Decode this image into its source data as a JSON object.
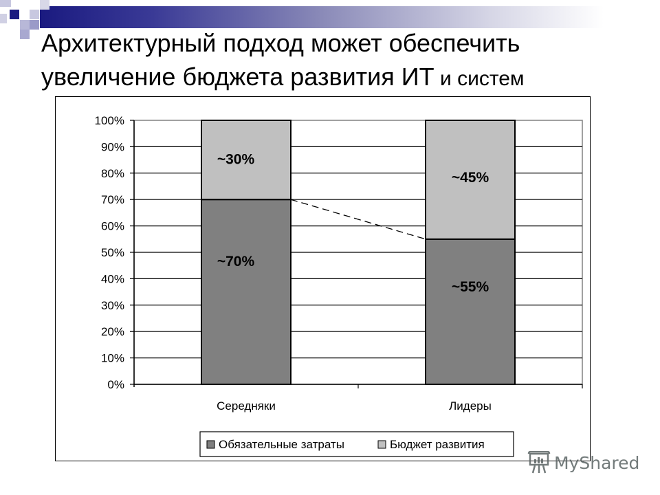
{
  "slide": {
    "title_line1": "Архитектурный подход может обеспечить",
    "title_line2_main": "увеличение бюджета развития ИТ",
    "title_line2_small": " и систем",
    "accent_color": "#1a1a80"
  },
  "watermark": {
    "text": "MyShared",
    "icon": "presentation-board-icon"
  },
  "chart_data": {
    "type": "bar",
    "stacked": true,
    "percent_stacked": true,
    "title": "",
    "xlabel": "",
    "ylabel": "",
    "categories": [
      "Середняки",
      "Лидеры"
    ],
    "series": [
      {
        "name": "Обязательные затраты",
        "values": [
          70,
          55
        ],
        "labels": [
          "~70%",
          "~55%"
        ],
        "color": "#808080"
      },
      {
        "name": "Бюджет развития",
        "values": [
          30,
          45
        ],
        "labels": [
          "~30%",
          "~45%"
        ],
        "color": "#c0c0c0"
      }
    ],
    "ylim": [
      0,
      100
    ],
    "yticks": [
      "0%",
      "10%",
      "20%",
      "30%",
      "40%",
      "50%",
      "60%",
      "70%",
      "80%",
      "90%",
      "100%"
    ],
    "grid": true,
    "legend_position": "bottom",
    "annotations": [
      {
        "type": "dashed-line",
        "from": [
          "Середняки",
          70
        ],
        "to": [
          "Лидеры",
          55
        ]
      }
    ]
  }
}
